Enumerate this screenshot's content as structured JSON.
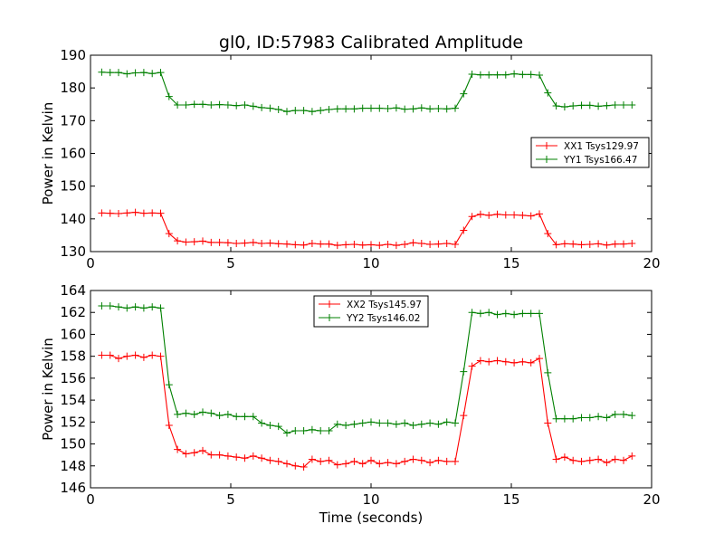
{
  "chart_data": [
    {
      "type": "line",
      "title": "gl0, ID:57983 Calibrated Amplitude",
      "xlabel": "",
      "ylabel": "Power in Kelvin",
      "xlim": [
        0,
        20
      ],
      "ylim": [
        130,
        190
      ],
      "xticks": [
        0,
        5,
        10,
        15,
        20
      ],
      "yticks": [
        130,
        140,
        150,
        160,
        170,
        180,
        190
      ],
      "grid": false,
      "legend": "center-right",
      "x": [
        0.4,
        0.7,
        1.0,
        1.3,
        1.6,
        1.9,
        2.2,
        2.5,
        2.8,
        3.1,
        3.4,
        3.7,
        4.0,
        4.3,
        4.6,
        4.9,
        5.2,
        5.5,
        5.8,
        6.1,
        6.4,
        6.7,
        7.0,
        7.3,
        7.6,
        7.9,
        8.2,
        8.5,
        8.8,
        9.1,
        9.4,
        9.7,
        10.0,
        10.3,
        10.6,
        10.9,
        11.2,
        11.5,
        11.8,
        12.1,
        12.4,
        12.7,
        13.0,
        13.3,
        13.6,
        13.9,
        14.2,
        14.5,
        14.8,
        15.1,
        15.4,
        15.7,
        16.0,
        16.3,
        16.6,
        16.9,
        17.2,
        17.5,
        17.8,
        18.1,
        18.4,
        18.7,
        19.0,
        19.3
      ],
      "series": [
        {
          "name": "XX1 Tsys129.97",
          "color": "#ff0000",
          "values": [
            141.8,
            141.7,
            141.6,
            141.8,
            142.0,
            141.7,
            141.8,
            141.7,
            135.5,
            133.3,
            132.9,
            133.0,
            133.2,
            132.8,
            132.8,
            132.7,
            132.5,
            132.6,
            132.8,
            132.5,
            132.6,
            132.4,
            132.3,
            132.1,
            132.0,
            132.5,
            132.3,
            132.3,
            131.9,
            132.1,
            132.2,
            132.0,
            132.1,
            131.9,
            132.2,
            131.9,
            132.2,
            132.7,
            132.5,
            132.2,
            132.3,
            132.5,
            132.2,
            136.5,
            140.7,
            141.4,
            141.1,
            141.4,
            141.2,
            141.2,
            141.1,
            140.9,
            141.5,
            135.5,
            132.1,
            132.4,
            132.3,
            132.1,
            132.2,
            132.4,
            132.0,
            132.3,
            132.3,
            132.5
          ]
        },
        {
          "name": "YY1 Tsys166.47",
          "color": "#008000",
          "values": [
            184.8,
            184.7,
            184.7,
            184.3,
            184.6,
            184.7,
            184.4,
            184.7,
            177.4,
            174.8,
            174.8,
            175.0,
            175.0,
            174.8,
            174.9,
            174.8,
            174.6,
            174.8,
            174.4,
            174.0,
            173.8,
            173.4,
            172.8,
            173.1,
            173.1,
            172.8,
            173.1,
            173.4,
            173.6,
            173.6,
            173.6,
            173.8,
            173.8,
            173.8,
            173.7,
            173.9,
            173.5,
            173.6,
            173.9,
            173.6,
            173.7,
            173.6,
            173.8,
            178.2,
            184.2,
            184.0,
            184.0,
            184.0,
            184.0,
            184.3,
            184.1,
            184.1,
            183.9,
            178.5,
            174.5,
            174.2,
            174.5,
            174.7,
            174.7,
            174.4,
            174.6,
            174.8,
            174.8,
            174.8
          ]
        }
      ]
    },
    {
      "type": "line",
      "title": "",
      "xlabel": "Time (seconds)",
      "ylabel": "Power in Kelvin",
      "xlim": [
        0,
        20
      ],
      "ylim": [
        146,
        164
      ],
      "xticks": [
        0,
        5,
        10,
        15,
        20
      ],
      "yticks": [
        146,
        148,
        150,
        152,
        154,
        156,
        158,
        160,
        162,
        164
      ],
      "grid": false,
      "legend": "top-center",
      "x": [
        0.4,
        0.7,
        1.0,
        1.3,
        1.6,
        1.9,
        2.2,
        2.5,
        2.8,
        3.1,
        3.4,
        3.7,
        4.0,
        4.3,
        4.6,
        4.9,
        5.2,
        5.5,
        5.8,
        6.1,
        6.4,
        6.7,
        7.0,
        7.3,
        7.6,
        7.9,
        8.2,
        8.5,
        8.8,
        9.1,
        9.4,
        9.7,
        10.0,
        10.3,
        10.6,
        10.9,
        11.2,
        11.5,
        11.8,
        12.1,
        12.4,
        12.7,
        13.0,
        13.3,
        13.6,
        13.9,
        14.2,
        14.5,
        14.8,
        15.1,
        15.4,
        15.7,
        16.0,
        16.3,
        16.6,
        16.9,
        17.2,
        17.5,
        17.8,
        18.1,
        18.4,
        18.7,
        19.0,
        19.3
      ],
      "series": [
        {
          "name": "XX2 Tsys145.97",
          "color": "#ff0000",
          "values": [
            158.1,
            158.1,
            157.8,
            158.0,
            158.1,
            157.9,
            158.1,
            158.0,
            151.7,
            149.5,
            149.1,
            149.2,
            149.4,
            149.0,
            149.0,
            148.9,
            148.8,
            148.7,
            148.9,
            148.7,
            148.5,
            148.4,
            148.2,
            148.0,
            147.9,
            148.6,
            148.4,
            148.5,
            148.1,
            148.2,
            148.4,
            148.2,
            148.5,
            148.2,
            148.3,
            148.2,
            148.4,
            148.6,
            148.5,
            148.3,
            148.5,
            148.4,
            148.4,
            152.6,
            157.1,
            157.6,
            157.5,
            157.6,
            157.5,
            157.4,
            157.5,
            157.4,
            157.8,
            151.9,
            148.6,
            148.8,
            148.5,
            148.4,
            148.5,
            148.6,
            148.3,
            148.6,
            148.5,
            148.9
          ]
        },
        {
          "name": "YY2 Tsys146.02",
          "color": "#008000",
          "values": [
            162.6,
            162.6,
            162.5,
            162.4,
            162.5,
            162.4,
            162.5,
            162.4,
            155.4,
            152.7,
            152.8,
            152.7,
            152.9,
            152.8,
            152.6,
            152.7,
            152.5,
            152.5,
            152.5,
            151.9,
            151.7,
            151.6,
            151.0,
            151.2,
            151.2,
            151.3,
            151.2,
            151.2,
            151.8,
            151.7,
            151.8,
            151.9,
            152.0,
            151.9,
            151.9,
            151.8,
            151.9,
            151.7,
            151.8,
            151.9,
            151.8,
            152.0,
            151.9,
            156.6,
            162.0,
            161.9,
            162.0,
            161.8,
            161.9,
            161.8,
            161.9,
            161.9,
            161.9,
            156.5,
            152.3,
            152.3,
            152.3,
            152.4,
            152.4,
            152.5,
            152.4,
            152.7,
            152.7,
            152.6
          ]
        }
      ]
    }
  ]
}
